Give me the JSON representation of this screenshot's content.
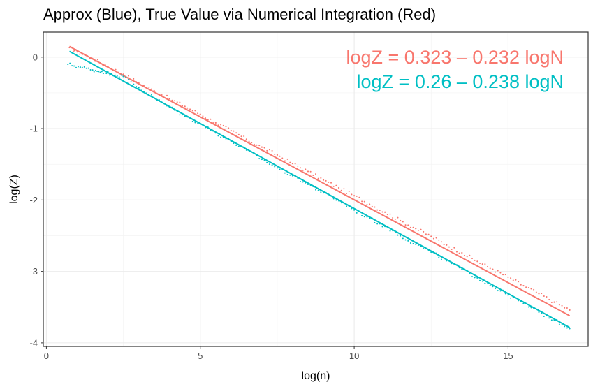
{
  "chart_data": {
    "type": "scatter",
    "title": "Approx (Blue), True Value via Numerical Integration (Red)",
    "xlabel": "log(n)",
    "ylabel": "log(Z)",
    "xlim": [
      -0.1,
      17.6
    ],
    "ylim": [
      -4.05,
      0.35
    ],
    "x_ticks": [
      0,
      5,
      10,
      15
    ],
    "y_ticks": [
      0,
      -1,
      -2,
      -3,
      -4
    ],
    "grid": true,
    "legend": "none",
    "annotations": [
      {
        "text": "logZ = 0.323 – 0.232 logN",
        "color": "#F8766D"
      },
      {
        "text": "logZ = 0.26 – 0.238 logN",
        "color": "#00BFC4"
      }
    ],
    "series": [
      {
        "color": "#F8766D",
        "fit": {
          "intercept": 0.323,
          "slope": -0.232
        },
        "x_range": [
          0.75,
          17.0
        ],
        "points": [
          [
            0.75,
            0.135
          ],
          [
            1.0,
            0.075
          ],
          [
            1.5,
            -0.02
          ],
          [
            2.0,
            -0.13
          ],
          [
            2.5,
            -0.24
          ],
          [
            3.0,
            -0.36
          ],
          [
            3.5,
            -0.47
          ],
          [
            4.0,
            -0.58
          ],
          [
            4.5,
            -0.69
          ],
          [
            5.0,
            -0.8
          ],
          [
            5.5,
            -0.92
          ],
          [
            6.0,
            -1.03
          ],
          [
            6.5,
            -1.15
          ],
          [
            7.0,
            -1.26
          ],
          [
            7.5,
            -1.37
          ],
          [
            8.0,
            -1.49
          ],
          [
            8.5,
            -1.6
          ],
          [
            9.0,
            -1.72
          ],
          [
            9.5,
            -1.83
          ],
          [
            10.0,
            -1.94
          ],
          [
            10.5,
            -2.06
          ],
          [
            11.0,
            -2.17
          ],
          [
            11.5,
            -2.29
          ],
          [
            12.0,
            -2.4
          ],
          [
            12.5,
            -2.51
          ],
          [
            13.0,
            -2.63
          ],
          [
            13.5,
            -2.74
          ],
          [
            14.0,
            -2.86
          ],
          [
            14.5,
            -2.97
          ],
          [
            15.0,
            -3.08
          ],
          [
            15.5,
            -3.2
          ],
          [
            16.0,
            -3.31
          ],
          [
            16.5,
            -3.43
          ],
          [
            17.0,
            -3.54
          ]
        ]
      },
      {
        "color": "#00BFC4",
        "fit": {
          "intercept": 0.26,
          "slope": -0.238
        },
        "x_range": [
          0.75,
          17.0
        ],
        "points": [
          [
            0.7,
            -0.1
          ],
          [
            1.1,
            -0.14
          ],
          [
            1.5,
            -0.18
          ],
          [
            1.8,
            -0.2
          ],
          [
            2.1,
            -0.23
          ],
          [
            2.5,
            -0.27
          ],
          [
            3.0,
            -0.43
          ],
          [
            3.5,
            -0.57
          ],
          [
            4.0,
            -0.7
          ],
          [
            4.5,
            -0.83
          ],
          [
            5.0,
            -0.93
          ],
          [
            5.5,
            -1.06
          ],
          [
            6.0,
            -1.18
          ],
          [
            6.5,
            -1.3
          ],
          [
            7.0,
            -1.43
          ],
          [
            7.5,
            -1.55
          ],
          [
            8.0,
            -1.66
          ],
          [
            8.5,
            -1.78
          ],
          [
            9.0,
            -1.9
          ],
          [
            9.5,
            -2.01
          ],
          [
            10.0,
            -2.14
          ],
          [
            10.5,
            -2.26
          ],
          [
            11.0,
            -2.37
          ],
          [
            11.5,
            -2.5
          ],
          [
            12.0,
            -2.62
          ],
          [
            12.5,
            -2.73
          ],
          [
            13.0,
            -2.85
          ],
          [
            13.5,
            -2.97
          ],
          [
            14.0,
            -3.09
          ],
          [
            14.5,
            -3.21
          ],
          [
            15.0,
            -3.33
          ],
          [
            15.5,
            -3.45
          ],
          [
            16.0,
            -3.57
          ],
          [
            16.5,
            -3.68
          ],
          [
            17.0,
            -3.8
          ]
        ]
      }
    ]
  }
}
